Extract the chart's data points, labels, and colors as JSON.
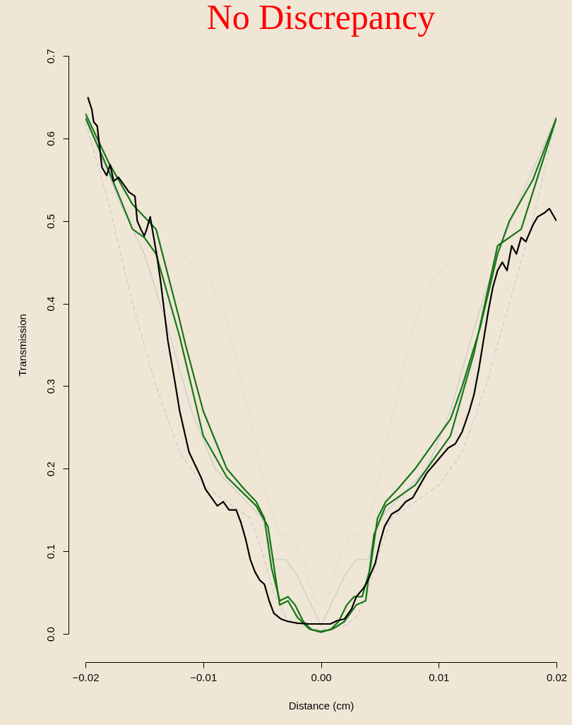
{
  "chart_data": {
    "type": "line",
    "title": "No Discrepancy",
    "xlabel": "Distance (cm)",
    "ylabel": "Transmission",
    "xlim": [
      -0.02,
      0.02
    ],
    "ylim": [
      0,
      0.7
    ],
    "xticks": [
      {
        "value": -0.02,
        "label": "−0.02"
      },
      {
        "value": -0.01,
        "label": "−0.01"
      },
      {
        "value": 0,
        "label": "0.00"
      },
      0.01,
      0.02
    ],
    "yticks": [
      {
        "value": 0,
        "label": "0.0"
      },
      0.1,
      0.2,
      0.3,
      0.4,
      0.5,
      0.6,
      0.7
    ],
    "grid": false,
    "marker": "none",
    "series": [
      {
        "color": "#cccccc",
        "line_style": "dotted",
        "x": [
          -0.02,
          -0.016,
          -0.013,
          -0.011,
          -0.0095,
          -0.008,
          -0.006,
          -0.0045,
          -0.0035,
          -0.0025,
          -0.0015,
          -0.0005,
          0,
          0.0005,
          0.0015,
          0.0025,
          0.0035,
          0.0045,
          0.006,
          0.008,
          0.0095,
          0.011,
          0.013,
          0.016,
          0.02
        ],
        "values": [
          0.62,
          0.5,
          0.47,
          0.45,
          0.43,
          0.38,
          0.26,
          0.16,
          0.12,
          0.12,
          0.09,
          0.04,
          0.035,
          0.04,
          0.09,
          0.12,
          0.12,
          0.16,
          0.26,
          0.38,
          0.43,
          0.45,
          0.47,
          0.51,
          0.625
        ]
      },
      {
        "color": "#cccccc",
        "line_style": "dashed",
        "x": [
          -0.02,
          -0.018,
          -0.016,
          -0.014,
          -0.012,
          -0.01,
          -0.008,
          -0.006,
          -0.005,
          -0.004,
          -0.003,
          -0.002,
          0,
          0.002,
          0.003,
          0.004,
          0.005,
          0.006,
          0.008,
          0.01,
          0.012,
          0.014,
          0.016,
          0.018,
          0.02
        ],
        "values": [
          0.62,
          0.52,
          0.4,
          0.3,
          0.22,
          0.18,
          0.16,
          0.14,
          0.1,
          0.05,
          0.02,
          0.01,
          0.005,
          0.01,
          0.02,
          0.05,
          0.1,
          0.14,
          0.16,
          0.18,
          0.22,
          0.3,
          0.4,
          0.5,
          0.625
        ]
      },
      {
        "color": "#cccccc",
        "line_style": "solid",
        "x": [
          -0.02,
          -0.017,
          -0.015,
          -0.013,
          -0.011,
          -0.009,
          -0.007,
          -0.005,
          -0.004,
          -0.003,
          -0.002,
          0,
          0.002,
          0.003,
          0.004,
          0.005,
          0.007,
          0.009,
          0.011,
          0.013,
          0.015,
          0.017,
          0.02
        ],
        "values": [
          0.625,
          0.52,
          0.46,
          0.37,
          0.27,
          0.2,
          0.17,
          0.14,
          0.09,
          0.09,
          0.07,
          0.01,
          0.07,
          0.09,
          0.09,
          0.14,
          0.17,
          0.2,
          0.27,
          0.37,
          0.46,
          0.53,
          0.625
        ]
      },
      {
        "color": "#167516",
        "line_style": "solid",
        "x": [
          -0.02,
          -0.018,
          -0.016,
          -0.014,
          -0.012,
          -0.0115,
          -0.01,
          -0.008,
          -0.0065,
          -0.0055,
          -0.0048,
          -0.0042,
          -0.0035,
          -0.0028,
          -0.0022,
          -0.0015,
          -0.0008,
          0,
          0.0008,
          0.0015,
          0.0022,
          0.0028,
          0.0035,
          0.0042,
          0.0048,
          0.0055,
          0.0065,
          0.008,
          0.01,
          0.011,
          0.012,
          0.0135,
          0.015,
          0.016,
          0.018,
          0.02
        ],
        "values": [
          0.63,
          0.57,
          0.52,
          0.49,
          0.38,
          0.35,
          0.27,
          0.2,
          0.175,
          0.16,
          0.14,
          0.08,
          0.04,
          0.045,
          0.035,
          0.015,
          0.005,
          0.003,
          0.005,
          0.015,
          0.035,
          0.045,
          0.045,
          0.08,
          0.14,
          0.16,
          0.175,
          0.2,
          0.24,
          0.26,
          0.3,
          0.37,
          0.46,
          0.5,
          0.55,
          0.625
        ]
      },
      {
        "color": "#167516",
        "line_style": "solid",
        "x": [
          -0.02,
          -0.018,
          -0.016,
          -0.015,
          -0.014,
          -0.012,
          -0.01,
          -0.008,
          -0.0055,
          -0.0045,
          -0.0035,
          -0.0028,
          -0.002,
          -0.001,
          0,
          0.001,
          0.002,
          0.003,
          0.0038,
          0.0045,
          0.0055,
          0.008,
          0.011,
          0.013,
          0.015,
          0.017,
          0.02
        ],
        "values": [
          0.625,
          0.56,
          0.49,
          0.48,
          0.46,
          0.36,
          0.24,
          0.19,
          0.155,
          0.13,
          0.035,
          0.04,
          0.02,
          0.006,
          0.002,
          0.006,
          0.015,
          0.035,
          0.04,
          0.12,
          0.155,
          0.18,
          0.24,
          0.34,
          0.47,
          0.49,
          0.625
        ]
      },
      {
        "color": "#000000",
        "line_style": "solid",
        "x": [
          -0.0198,
          -0.01946,
          -0.0193,
          -0.019,
          -0.0186,
          -0.0182,
          -0.0179,
          -0.0176,
          -0.0172,
          -0.0168,
          -0.0163,
          -0.0158,
          -0.0156,
          -0.0153,
          -0.015,
          -0.0148,
          -0.0145,
          -0.0142,
          -0.0139,
          -0.0136,
          -0.0133,
          -0.013,
          -0.0127,
          -0.0124,
          -0.012,
          -0.0116,
          -0.0112,
          -0.0107,
          -0.0102,
          -0.0098,
          -0.0093,
          -0.0088,
          -0.0083,
          -0.0078,
          -0.0072,
          -0.0068,
          -0.0064,
          -0.006,
          -0.0056,
          -0.0052,
          -0.0048,
          -0.0044,
          -0.004,
          -0.0034,
          -0.0028,
          -0.002,
          -0.001,
          0,
          0.0008,
          0.0014,
          0.002,
          0.0026,
          0.003,
          0.0036,
          0.004,
          0.0046,
          0.005,
          0.0054,
          0.006,
          0.0066,
          0.0072,
          0.0078,
          0.0084,
          0.009,
          0.0096,
          0.0102,
          0.0108,
          0.0114,
          0.012,
          0.0126,
          0.013,
          0.0134,
          0.0138,
          0.0142,
          0.0146,
          0.015,
          0.0154,
          0.0158,
          0.0162,
          0.0166,
          0.017,
          0.0174,
          0.018,
          0.0184,
          0.019,
          0.0194,
          0.02
        ],
        "values": [
          0.65,
          0.635,
          0.62,
          0.615,
          0.565,
          0.555,
          0.568,
          0.548,
          0.553,
          0.545,
          0.535,
          0.53,
          0.5,
          0.49,
          0.482,
          0.49,
          0.505,
          0.48,
          0.455,
          0.425,
          0.39,
          0.355,
          0.33,
          0.305,
          0.27,
          0.245,
          0.22,
          0.205,
          0.19,
          0.175,
          0.165,
          0.155,
          0.16,
          0.15,
          0.15,
          0.135,
          0.115,
          0.09,
          0.075,
          0.065,
          0.06,
          0.04,
          0.025,
          0.018,
          0.015,
          0.013,
          0.012,
          0.012,
          0.012,
          0.016,
          0.018,
          0.03,
          0.045,
          0.055,
          0.065,
          0.085,
          0.11,
          0.13,
          0.145,
          0.15,
          0.16,
          0.165,
          0.18,
          0.195,
          0.205,
          0.215,
          0.225,
          0.23,
          0.245,
          0.27,
          0.29,
          0.32,
          0.355,
          0.39,
          0.42,
          0.44,
          0.45,
          0.44,
          0.47,
          0.46,
          0.48,
          0.475,
          0.495,
          0.505,
          0.51,
          0.515,
          0.5
        ]
      }
    ]
  }
}
